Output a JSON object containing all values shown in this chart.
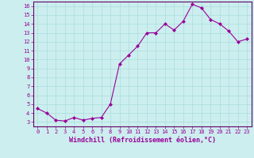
{
  "x": [
    0,
    1,
    2,
    3,
    4,
    5,
    6,
    7,
    8,
    9,
    10,
    11,
    12,
    13,
    14,
    15,
    16,
    17,
    18,
    19,
    20,
    21,
    22,
    23
  ],
  "y": [
    4.5,
    4.0,
    3.2,
    3.1,
    3.5,
    3.2,
    3.4,
    3.5,
    5.0,
    9.5,
    10.5,
    11.5,
    13.0,
    13.0,
    14.0,
    13.3,
    14.3,
    16.2,
    15.8,
    14.5,
    14.0,
    13.2,
    12.0,
    12.3
  ],
  "line_color": "#990099",
  "marker": "D",
  "marker_size": 2,
  "background_color": "#cceeee",
  "grid_color": "#aadddd",
  "xlabel": "Windchill (Refroidissement éolien,°C)",
  "ylabel": "",
  "xlim": [
    -0.5,
    23.5
  ],
  "ylim": [
    2.5,
    16.5
  ],
  "yticks": [
    3,
    4,
    5,
    6,
    7,
    8,
    9,
    10,
    11,
    12,
    13,
    14,
    15,
    16
  ],
  "xticks": [
    0,
    1,
    2,
    3,
    4,
    5,
    6,
    7,
    8,
    9,
    10,
    11,
    12,
    13,
    14,
    15,
    16,
    17,
    18,
    19,
    20,
    21,
    22,
    23
  ],
  "tick_color": "#990099",
  "tick_fontsize": 5.0,
  "xlabel_fontsize": 6.0,
  "spine_color": "#660066",
  "axis_bg": "#cceeee"
}
